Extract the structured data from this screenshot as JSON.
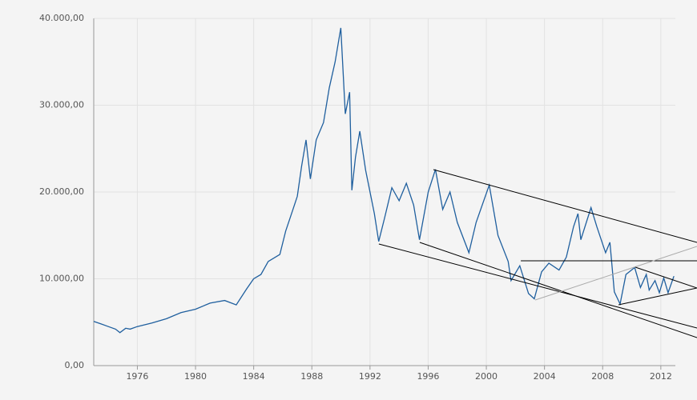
{
  "chart_data": {
    "type": "line",
    "x": [
      1973.0,
      1973.5,
      1974.0,
      1974.5,
      1974.8,
      1975.2,
      1975.5,
      1976,
      1977,
      1978,
      1979,
      1980,
      1981,
      1982,
      1982.8,
      1983.5,
      1984,
      1984.5,
      1985,
      1985.8,
      1986.2,
      1986.7,
      1987,
      1987.3,
      1987.6,
      1987.9,
      1988.3,
      1988.8,
      1989.2,
      1989.6,
      1989.99,
      1990.3,
      1990.6,
      1990.75,
      1991.0,
      1991.3,
      1991.7,
      1992.3,
      1992.6,
      1993,
      1993.5,
      1994,
      1994.5,
      1995.0,
      1995.4,
      1996,
      1996.5,
      1997,
      1997.5,
      1998,
      1998.8,
      1999.3,
      2000.2,
      2000.8,
      2001.5,
      2001.7,
      2002.3,
      2002.9,
      2003.3,
      2003.8,
      2004.3,
      2005,
      2005.5,
      2006.0,
      2006.3,
      2006.5,
      2007.2,
      2007.6,
      2008.2,
      2008.5,
      2008.8,
      2009.2,
      2009.6,
      2010.2,
      2010.6,
      2011.0,
      2011.2,
      2011.6,
      2011.9,
      2012.2,
      2012.5,
      2012.9
    ],
    "values": [
      5100,
      4800,
      4500,
      4200,
      3800,
      4300,
      4200,
      4500,
      4900,
      5400,
      6100,
      6500,
      7200,
      7500,
      7000,
      8800,
      10000,
      10500,
      12000,
      12800,
      15500,
      18000,
      19500,
      23000,
      26000,
      21500,
      26000,
      28000,
      32000,
      35000,
      38900,
      29000,
      31500,
      20200,
      24000,
      27000,
      22500,
      17500,
      14300,
      17000,
      20500,
      19000,
      21000,
      18500,
      14500,
      20000,
      22600,
      18000,
      20000,
      16500,
      13000,
      16500,
      20800,
      15000,
      12000,
      9800,
      11500,
      8300,
      7700,
      10800,
      11800,
      11000,
      12500,
      16000,
      17500,
      14500,
      18200,
      16000,
      13000,
      14200,
      8500,
      7100,
      10500,
      11300,
      9000,
      10500,
      8700,
      9800,
      8400,
      10100,
      8400,
      10300
    ],
    "color": "#1f5f9e",
    "xlim": [
      1973.0,
      2013.0
    ],
    "xticks": [
      1976,
      1980,
      1984,
      1988,
      1992,
      1996,
      2000,
      2004,
      2008,
      2012
    ],
    "ylim": [
      0,
      40000
    ],
    "yticks": [
      {
        "value": 0,
        "label": "0,00"
      },
      {
        "value": 10000,
        "label": "10.000,00"
      },
      {
        "value": 20000,
        "label": "20.000,00"
      },
      {
        "value": 30000,
        "label": "30.000,00"
      },
      {
        "value": 40000,
        "label": "40.000,00"
      }
    ],
    "grid": true,
    "trendlines": [
      {
        "color": "#000000",
        "x": [
          1996.36,
          2014.49
        ],
        "y": [
          22581,
          14194
        ]
      },
      {
        "color": "#000000",
        "x": [
          1992.61,
          2014.49
        ],
        "y": [
          14009,
          4332
        ]
      },
      {
        "color": "#000000",
        "x": [
          1995.42,
          2014.49
        ],
        "y": [
          14194,
          3226
        ]
      },
      {
        "color": "#000000",
        "x": [
          2002.37,
          2014.49
        ],
        "y": [
          12074,
          12074
        ]
      },
      {
        "color": "#aaaaaa",
        "x": [
          2003.36,
          2014.49
        ],
        "y": [
          7558,
          13733
        ]
      },
      {
        "color": "#000000",
        "x": [
          2010.25,
          2014.49
        ],
        "y": [
          11337,
          8941
        ]
      },
      {
        "color": "#000000",
        "x": [
          2009.09,
          2014.49
        ],
        "y": [
          7005,
          8941
        ]
      }
    ]
  }
}
